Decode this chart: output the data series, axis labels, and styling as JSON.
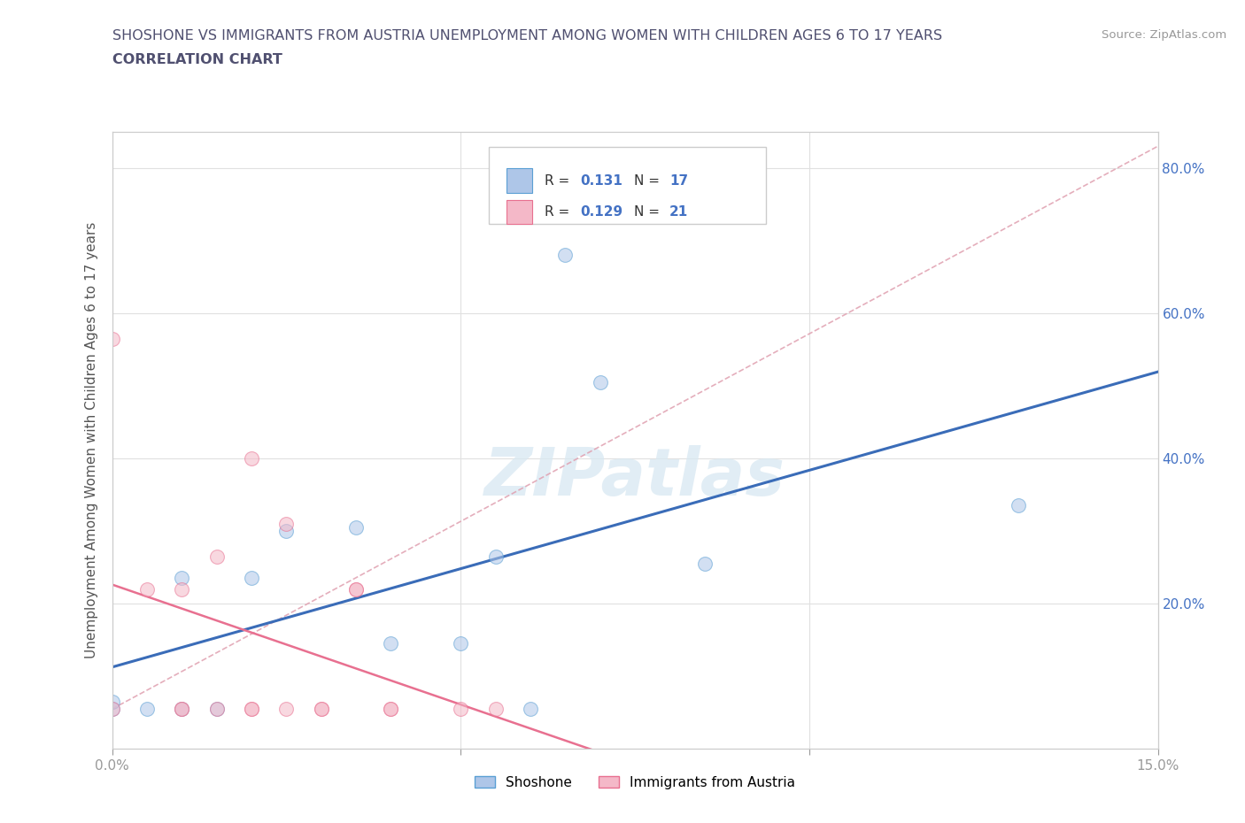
{
  "title_line1": "SHOSHONE VS IMMIGRANTS FROM AUSTRIA UNEMPLOYMENT AMONG WOMEN WITH CHILDREN AGES 6 TO 17 YEARS",
  "title_line2": "CORRELATION CHART",
  "source": "Source: ZipAtlas.com",
  "ylabel": "Unemployment Among Women with Children Ages 6 to 17 years",
  "xlim": [
    0.0,
    0.15
  ],
  "ylim": [
    0.0,
    0.85
  ],
  "shoshone_x": [
    0.0,
    0.0,
    0.005,
    0.01,
    0.01,
    0.015,
    0.02,
    0.025,
    0.035,
    0.04,
    0.05,
    0.055,
    0.065,
    0.07,
    0.085,
    0.13,
    0.06
  ],
  "shoshone_y": [
    0.055,
    0.065,
    0.055,
    0.055,
    0.235,
    0.055,
    0.235,
    0.3,
    0.305,
    0.145,
    0.145,
    0.265,
    0.68,
    0.505,
    0.255,
    0.335,
    0.055
  ],
  "austria_x": [
    0.0,
    0.0,
    0.005,
    0.01,
    0.01,
    0.01,
    0.015,
    0.015,
    0.02,
    0.02,
    0.02,
    0.025,
    0.025,
    0.03,
    0.03,
    0.035,
    0.035,
    0.04,
    0.04,
    0.05,
    0.055
  ],
  "austria_y": [
    0.055,
    0.565,
    0.22,
    0.055,
    0.055,
    0.22,
    0.055,
    0.265,
    0.055,
    0.055,
    0.4,
    0.055,
    0.31,
    0.055,
    0.055,
    0.22,
    0.22,
    0.055,
    0.055,
    0.055,
    0.055
  ],
  "shoshone_color": "#aec6e8",
  "austria_color": "#f4b8c8",
  "shoshone_edge": "#5a9fd4",
  "austria_edge": "#e87090",
  "trend_shoshone_color": "#3a6cb8",
  "trend_austria_color": "#e87090",
  "dashed_line_color": "#e0a0b0",
  "watermark": "ZIPatlas",
  "shoshone_label": "Shoshone",
  "austria_label": "Immigrants from Austria",
  "marker_size": 130,
  "alpha": 0.55,
  "title_color": "#505070",
  "grid_color": "#e0e0e0",
  "right_ytick_color": "#4472c4",
  "tick_label_color": "#555555"
}
